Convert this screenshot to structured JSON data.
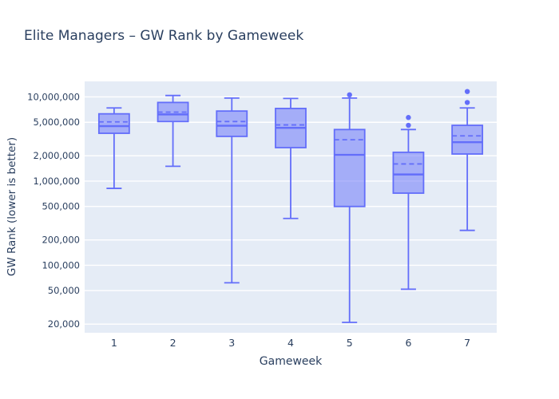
{
  "title": "Elite Managers – GW Rank by Gameweek",
  "xaxis": {
    "title": "Gameweek",
    "tick_labels": [
      "1",
      "2",
      "3",
      "4",
      "5",
      "6",
      "7"
    ]
  },
  "yaxis": {
    "title": "GW Rank (lower is better)",
    "type": "log",
    "range": [
      15800,
      15300000
    ],
    "tick_values": [
      10000000,
      5000000,
      2000000,
      1000000,
      500000,
      200000,
      100000,
      50000,
      20000
    ],
    "tick_labels": [
      "10,000,000",
      "5,000,000",
      "2,000,000",
      "1,000,000",
      "500,000",
      "200,000",
      "100,000",
      "50,000",
      "20,000"
    ]
  },
  "colors": {
    "box_line": "#636EFA",
    "box_fill": "rgba(99,110,250,0.5)",
    "plot_bg": "#E5ECF6",
    "grid": "#FFFFFF",
    "text": "#2a3f5f"
  },
  "chart_data": {
    "type": "box",
    "title": "Elite Managers – GW Rank by Gameweek",
    "xlabel": "Gameweek",
    "ylabel": "GW Rank (lower is better)",
    "grid": true,
    "legend": false,
    "yaxis_type": "log",
    "ylim": [
      15800,
      15300000
    ],
    "categories": [
      "1",
      "2",
      "3",
      "4",
      "5",
      "6",
      "7"
    ],
    "series": [
      {
        "gameweek": "1",
        "min": 820000,
        "q1": 3700000,
        "median": 4500000,
        "mean": 5050000,
        "q3": 6300000,
        "max": 7400000,
        "outliers": []
      },
      {
        "gameweek": "2",
        "min": 1500000,
        "q1": 5100000,
        "median": 6200000,
        "mean": 6600000,
        "q3": 8600000,
        "max": 10400000,
        "outliers": []
      },
      {
        "gameweek": "3",
        "min": 62000,
        "q1": 3400000,
        "median": 4550000,
        "mean": 5100000,
        "q3": 6800000,
        "max": 9700000,
        "outliers": []
      },
      {
        "gameweek": "4",
        "min": 360000,
        "q1": 2500000,
        "median": 4300000,
        "mean": 4650000,
        "q3": 7300000,
        "max": 9600000,
        "outliers": []
      },
      {
        "gameweek": "5",
        "min": 21000,
        "q1": 500000,
        "median": 2050000,
        "mean": 3100000,
        "q3": 4100000,
        "max": 9700000,
        "outliers": [
          10600000
        ]
      },
      {
        "gameweek": "6",
        "min": 52000,
        "q1": 720000,
        "median": 1200000,
        "mean": 1600000,
        "q3": 2200000,
        "max": 4100000,
        "outliers": [
          4600000,
          5700000
        ]
      },
      {
        "gameweek": "7",
        "min": 260000,
        "q1": 2100000,
        "median": 2900000,
        "mean": 3450000,
        "q3": 4600000,
        "max": 7400000,
        "outliers": [
          8600000,
          11600000
        ]
      }
    ]
  }
}
